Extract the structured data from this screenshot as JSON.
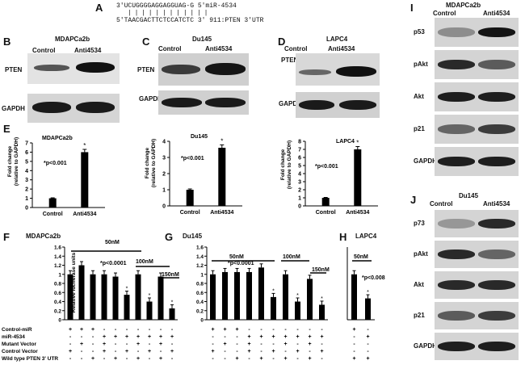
{
  "panelA": {
    "letter": "A",
    "mir_seq": "3'UCUGGGGAGGAGGUAG-G 5'miR-4534",
    "bars": "| | | | | | | | | | | |",
    "utr_seq": "5'TAACGACTTCTCCATCTC 3' 911:PTEN 3'UTR"
  },
  "panelB": {
    "letter": "B",
    "title": "MDAPCa2b",
    "control": "Control",
    "anti": "Anti4534",
    "row1": "PTEN",
    "row2": "GAPDH"
  },
  "panelC": {
    "letter": "C",
    "title": "Du145",
    "control": "Control",
    "anti": "Anti4534",
    "row1": "PTEN",
    "row2": "GAPDH"
  },
  "panelD": {
    "letter": "D",
    "title": "LAPC4",
    "control": "Control",
    "anti": "Anti4534",
    "row1": "PTEN",
    "row2": "GAPDH"
  },
  "panelE": {
    "letter": "E",
    "ylabel1": "Fold change",
    "ylabel2": "(relative to GAPDH)",
    "pval": "*p<0.001",
    "star": "*"
  },
  "panelI": {
    "letter": "I",
    "title": "MDAPCa2b",
    "control": "Control",
    "anti": "Anti4534",
    "rows": [
      "p53",
      "pAkt",
      "Akt",
      "p21",
      "GAPDH"
    ]
  },
  "panelJ": {
    "letter": "J",
    "title": "Du145",
    "control": "Control",
    "anti": "Anti4534",
    "rows": [
      "p73",
      "pAkt",
      "Akt",
      "p21",
      "GAPDH"
    ]
  },
  "panelF": {
    "letter": "F",
    "title": "MDAPCa2b",
    "c50": "50nM",
    "c100": "100nM",
    "c150": "150nM",
    "pval": "*p<0.0001",
    "ylabel": "Relative luciferase units"
  },
  "panelG": {
    "letter": "G",
    "title": "Du145",
    "c50": "50nM",
    "c100": "100nM",
    "c150": "150nM",
    "pval": "*p<0.0001"
  },
  "panelH": {
    "letter": "H",
    "title": "LAPC4",
    "c50": "50nM",
    "pval": "*p<0.008"
  },
  "table": {
    "rows": [
      "Control-miR",
      "miR-4534",
      "Mutant Vector",
      "Control Vector",
      "Wild type PTEN 3' UTR"
    ],
    "F_signs": [
      [
        "+",
        "+",
        "+",
        "-",
        "-",
        "-",
        "-",
        "-",
        "-",
        "-"
      ],
      [
        "-",
        "-",
        "-",
        "+",
        "+",
        "+",
        "+",
        "+",
        "+",
        "+"
      ],
      [
        "-",
        "+",
        "-",
        "+",
        "-",
        "-",
        "+",
        "-",
        "+",
        "-"
      ],
      [
        "+",
        "-",
        "-",
        "+",
        "-",
        "+",
        "-",
        "+",
        "-",
        "+"
      ],
      [
        "-",
        "-",
        "+",
        "-",
        "+",
        "-",
        "+",
        "-",
        "+",
        "-"
      ]
    ],
    "G_signs": [
      [
        "+",
        "+",
        "+",
        "-",
        "-",
        "-",
        "-",
        "-",
        "-",
        "-"
      ],
      [
        "-",
        "-",
        "-",
        "+",
        "+",
        "+",
        "+",
        "+",
        "+",
        "+"
      ],
      [
        "-",
        "+",
        "-",
        "+",
        "-",
        "-",
        "+",
        "-",
        "+",
        "-"
      ],
      [
        "+",
        "-",
        "-",
        "+",
        "-",
        "+",
        "-",
        "+",
        "-",
        "+"
      ],
      [
        "-",
        "-",
        "+",
        "-",
        "+",
        "-",
        "+",
        "-",
        "+",
        "-"
      ]
    ],
    "H_signs": [
      [
        "+",
        "-"
      ],
      [
        "-",
        "+"
      ],
      [
        "-",
        "-"
      ],
      [
        "-",
        "-"
      ],
      [
        "+",
        "+"
      ]
    ]
  },
  "chart_data": [
    {
      "type": "bar",
      "title": "MDAPCa2b",
      "ylabel": "Fold change (relative to GAPDH)",
      "categories": [
        "Control",
        "Anti4534"
      ],
      "values": [
        1.0,
        6.0
      ],
      "ylim": [
        0,
        7
      ],
      "yticks": [
        "0",
        "1",
        "2",
        "3",
        "4",
        "5",
        "6",
        "7"
      ]
    },
    {
      "type": "bar",
      "title": "Du145",
      "ylabel": "Fold change (relative to GAPDH)",
      "categories": [
        "Control",
        "Anti4534"
      ],
      "values": [
        1.0,
        3.6
      ],
      "ylim": [
        0,
        4
      ],
      "yticks": [
        "0",
        "1",
        "2",
        "3",
        "4"
      ]
    },
    {
      "type": "bar",
      "title": "LAPC4",
      "ylabel": "Fold change (relative to GAPDH)",
      "categories": [
        "Control",
        "Anti4534"
      ],
      "values": [
        1.0,
        7.0
      ],
      "ylim": [
        0,
        8
      ],
      "yticks": [
        "0",
        "1",
        "2",
        "3",
        "4",
        "5",
        "6",
        "7",
        "8"
      ]
    },
    {
      "type": "bar",
      "title": "MDAPCa2b",
      "ylabel": "Relative luciferase units",
      "values": [
        1.0,
        1.2,
        1.0,
        1.0,
        0.95,
        0.55,
        1.0,
        0.4,
        0.95,
        0.25
      ],
      "ylim": [
        0,
        1.6
      ],
      "yticks": [
        "0",
        "0.2",
        "0.4",
        "0.6",
        "0.8",
        "1",
        "1.2",
        "1.4",
        "1.6"
      ]
    },
    {
      "type": "bar",
      "title": "Du145",
      "ylabel": "Relative luciferase units",
      "values": [
        1.0,
        1.05,
        1.05,
        1.05,
        1.15,
        0.5,
        1.0,
        0.4,
        0.9,
        0.33
      ],
      "ylim": [
        0,
        1.6
      ],
      "yticks": [
        "0",
        "0.2",
        "0.4",
        "0.6",
        "0.8",
        "1",
        "1.2",
        "1.4",
        "1.6"
      ]
    },
    {
      "type": "bar",
      "title": "LAPC4",
      "values": [
        1.0,
        0.47
      ],
      "ylim": [
        0,
        1.6
      ]
    }
  ]
}
